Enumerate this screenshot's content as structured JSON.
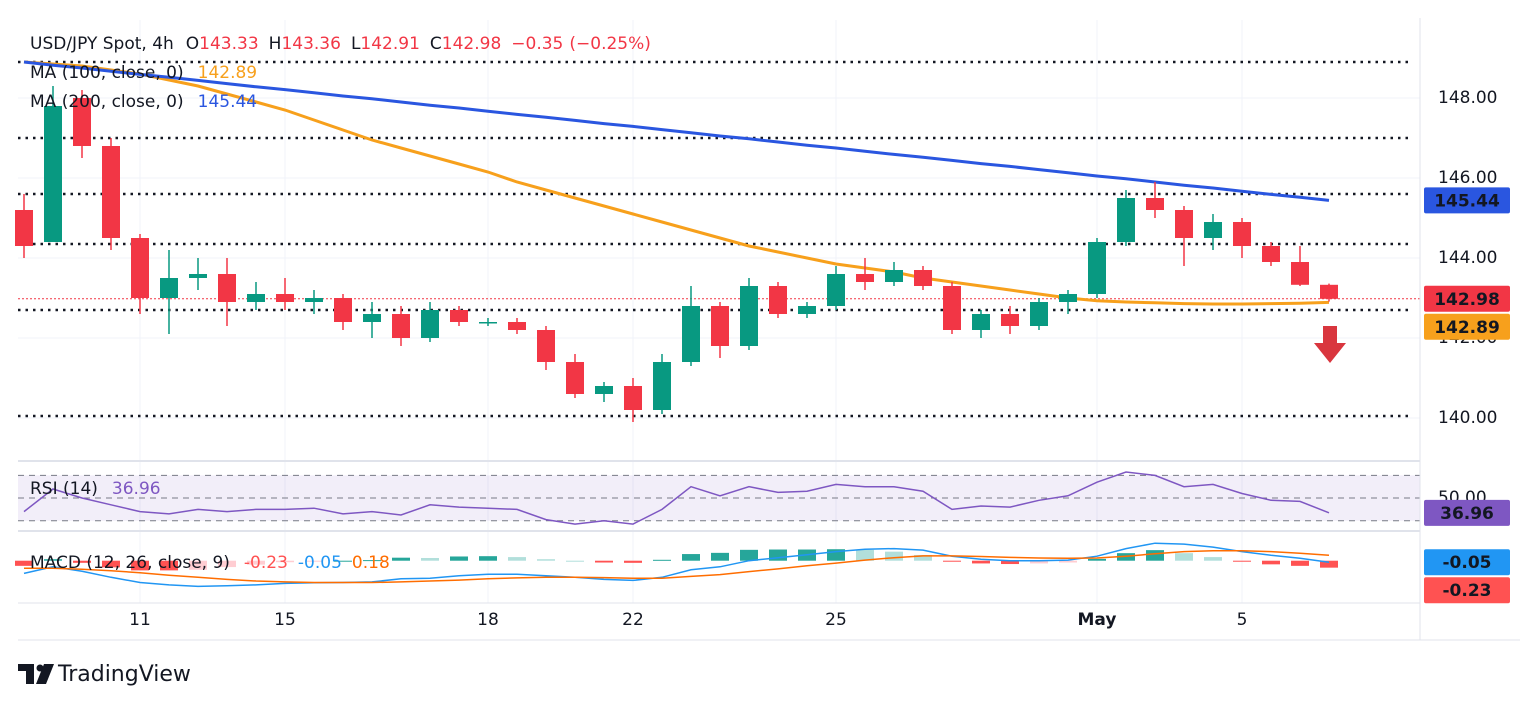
{
  "chart_data": {
    "type": "candlestick",
    "title": "USD/JPY Spot, 4h",
    "ohlc_labels": [
      "O",
      "H",
      "L",
      "C"
    ],
    "change": {
      "value": -0.35,
      "label": "−0.35"
    },
    "change_pct": {
      "value": -0.25,
      "label": "(−0.25%)"
    },
    "categories": [
      null,
      null,
      null,
      null,
      "11",
      null,
      null,
      null,
      null,
      "15",
      null,
      null,
      null,
      null,
      null,
      null,
      "18",
      null,
      null,
      null,
      null,
      "22",
      null,
      null,
      null,
      null,
      null,
      null,
      "25",
      null,
      null,
      null,
      null,
      null,
      null,
      null,
      null,
      "May",
      null,
      null,
      null,
      null,
      "5",
      null,
      null,
      null
    ],
    "open": [
      145.2,
      144.4,
      148.0,
      146.8,
      144.5,
      143.0,
      143.5,
      143.6,
      142.9,
      143.1,
      142.9,
      143.0,
      142.4,
      142.6,
      142.0,
      142.7,
      142.4,
      142.4,
      142.2,
      141.4,
      140.6,
      140.8,
      140.2,
      141.4,
      142.8,
      141.8,
      143.3,
      142.6,
      142.8,
      143.6,
      143.4,
      143.7,
      143.3,
      142.2,
      142.6,
      142.3,
      142.9,
      143.1,
      144.4,
      145.5,
      145.2,
      144.5,
      144.9,
      144.3,
      143.9,
      143.33
    ],
    "high": [
      145.6,
      148.3,
      148.2,
      147.0,
      144.6,
      144.2,
      144.0,
      144.0,
      143.4,
      143.5,
      143.2,
      143.1,
      142.9,
      142.8,
      142.9,
      142.8,
      142.5,
      142.5,
      142.3,
      141.6,
      140.9,
      141.0,
      141.6,
      143.3,
      142.9,
      143.5,
      143.4,
      142.9,
      143.8,
      144.0,
      143.9,
      143.8,
      143.4,
      142.7,
      142.8,
      143.0,
      143.2,
      144.5,
      145.7,
      145.9,
      145.3,
      145.1,
      145.0,
      144.4,
      144.3,
      143.36
    ],
    "low": [
      144.0,
      144.4,
      146.5,
      144.2,
      142.6,
      142.1,
      143.2,
      142.3,
      142.7,
      142.7,
      142.6,
      142.2,
      142.0,
      141.8,
      141.9,
      142.3,
      142.3,
      142.1,
      141.2,
      140.5,
      140.4,
      139.9,
      140.1,
      141.3,
      141.5,
      141.7,
      142.5,
      142.5,
      142.7,
      143.2,
      143.3,
      143.2,
      142.1,
      142.0,
      142.1,
      142.2,
      142.6,
      143.0,
      144.3,
      145.0,
      143.8,
      144.2,
      144.0,
      143.8,
      143.3,
      142.91
    ],
    "close": [
      144.3,
      147.8,
      146.8,
      144.5,
      143.0,
      143.5,
      143.6,
      142.9,
      143.1,
      142.9,
      143.0,
      142.4,
      142.6,
      142.0,
      142.7,
      142.4,
      142.4,
      142.2,
      141.4,
      140.6,
      140.8,
      140.2,
      141.4,
      142.8,
      141.8,
      143.3,
      142.6,
      142.8,
      143.6,
      143.4,
      143.7,
      143.3,
      142.2,
      142.6,
      142.3,
      142.9,
      143.1,
      144.4,
      145.5,
      145.2,
      144.5,
      144.9,
      144.3,
      143.9,
      143.33,
      142.98
    ],
    "up_color": "#089981",
    "down_color": "#f23645",
    "ylim": [
      138.95,
      149.95
    ],
    "yticks": [
      {
        "value": 140,
        "label": "140.00"
      },
      {
        "value": 142,
        "label": "142.00"
      },
      {
        "value": 144,
        "label": "144.00"
      },
      {
        "value": 146,
        "label": "146.00"
      },
      {
        "value": 148,
        "label": "148.00"
      }
    ],
    "grid": true,
    "levels": [
      148.9,
      147.0,
      145.6,
      144.35,
      142.7,
      140.05
    ],
    "series": [
      {
        "name": "MA (100, close, 0)",
        "color": "#f7a01c",
        "values": [
          148.9,
          148.85,
          148.8,
          148.7,
          148.6,
          148.45,
          148.3,
          148.1,
          147.9,
          147.7,
          147.45,
          147.2,
          146.95,
          146.75,
          146.55,
          146.35,
          146.15,
          145.9,
          145.7,
          145.5,
          145.3,
          145.1,
          144.9,
          144.7,
          144.5,
          144.3,
          144.15,
          144.0,
          143.85,
          143.75,
          143.65,
          143.5,
          143.4,
          143.3,
          143.2,
          143.1,
          143.0,
          142.93,
          142.9,
          142.88,
          142.86,
          142.85,
          142.85,
          142.86,
          142.87,
          142.89
        ]
      },
      {
        "name": "MA (200, close, 0)",
        "color": "#2a56e0",
        "values": [
          148.9,
          148.82,
          148.75,
          148.67,
          148.59,
          148.52,
          148.44,
          148.36,
          148.28,
          148.21,
          148.13,
          148.05,
          147.98,
          147.9,
          147.82,
          147.75,
          147.67,
          147.59,
          147.52,
          147.44,
          147.36,
          147.29,
          147.21,
          147.13,
          147.05,
          146.98,
          146.9,
          146.82,
          146.75,
          146.67,
          146.59,
          146.52,
          146.44,
          146.36,
          146.29,
          146.21,
          146.13,
          146.05,
          145.98,
          145.9,
          145.82,
          145.75,
          145.67,
          145.59,
          145.52,
          145.44
        ]
      }
    ],
    "rsi": {
      "name": "RSI (14)",
      "color": "#7e57c2",
      "values": [
        38,
        58,
        50,
        44,
        38,
        36,
        40,
        38,
        40,
        40,
        41,
        36,
        38,
        35,
        44,
        42,
        41,
        40,
        31,
        27,
        30,
        27,
        40,
        60,
        52,
        60,
        55,
        56,
        62,
        60,
        60,
        56,
        40,
        43,
        42,
        48,
        52,
        64,
        73,
        70,
        60,
        62,
        54,
        48,
        47,
        36.96
      ],
      "ylim": [
        21.8,
        81.8
      ],
      "levels": [
        70,
        50,
        30
      ],
      "yticks": [
        {
          "value": 50,
          "label": "50.00"
        }
      ]
    },
    "macd": {
      "name": "MACD (12, 26, close, 9)",
      "ylim": [
        -1.3,
        0.95
      ],
      "histogram": {
        "colors": [
          "#26a69a",
          "#b2dfdb",
          "#ff5252",
          "#ffcdd2"
        ],
        "values": [
          -0.17,
          0.05,
          -0.07,
          -0.22,
          -0.32,
          -0.32,
          -0.3,
          -0.21,
          -0.13,
          -0.05,
          -0.01,
          0,
          0.02,
          0.1,
          0.09,
          0.14,
          0.15,
          0.12,
          0.05,
          0,
          -0.06,
          -0.07,
          0.03,
          0.22,
          0.26,
          0.36,
          0.37,
          0.37,
          0.38,
          0.36,
          0.3,
          0.19,
          -0.01,
          -0.09,
          -0.11,
          -0.09,
          -0.06,
          0.06,
          0.25,
          0.35,
          0.25,
          0.12,
          -0.03,
          -0.12,
          -0.17,
          -0.23
        ]
      },
      "macd": {
        "color": "#2196f3",
        "values": [
          -0.42,
          -0.2,
          -0.35,
          -0.55,
          -0.72,
          -0.8,
          -0.85,
          -0.83,
          -0.8,
          -0.75,
          -0.73,
          -0.72,
          -0.7,
          -0.6,
          -0.58,
          -0.5,
          -0.45,
          -0.45,
          -0.5,
          -0.55,
          -0.62,
          -0.65,
          -0.55,
          -0.3,
          -0.2,
          0.0,
          0.1,
          0.2,
          0.3,
          0.38,
          0.4,
          0.35,
          0.15,
          0.05,
          0.0,
          0.0,
          0.02,
          0.15,
          0.4,
          0.58,
          0.55,
          0.45,
          0.3,
          0.18,
          0.08,
          -0.05
        ]
      },
      "signal": {
        "color": "#ff6d00",
        "values": [
          -0.25,
          -0.25,
          -0.28,
          -0.33,
          -0.4,
          -0.48,
          -0.55,
          -0.62,
          -0.67,
          -0.7,
          -0.72,
          -0.72,
          -0.72,
          -0.7,
          -0.67,
          -0.64,
          -0.6,
          -0.57,
          -0.55,
          -0.55,
          -0.56,
          -0.58,
          -0.58,
          -0.52,
          -0.46,
          -0.36,
          -0.27,
          -0.17,
          -0.08,
          0.02,
          0.1,
          0.16,
          0.16,
          0.14,
          0.11,
          0.09,
          0.08,
          0.09,
          0.15,
          0.23,
          0.3,
          0.33,
          0.33,
          0.3,
          0.25,
          0.18
        ]
      }
    }
  },
  "branding": "TradingView"
}
